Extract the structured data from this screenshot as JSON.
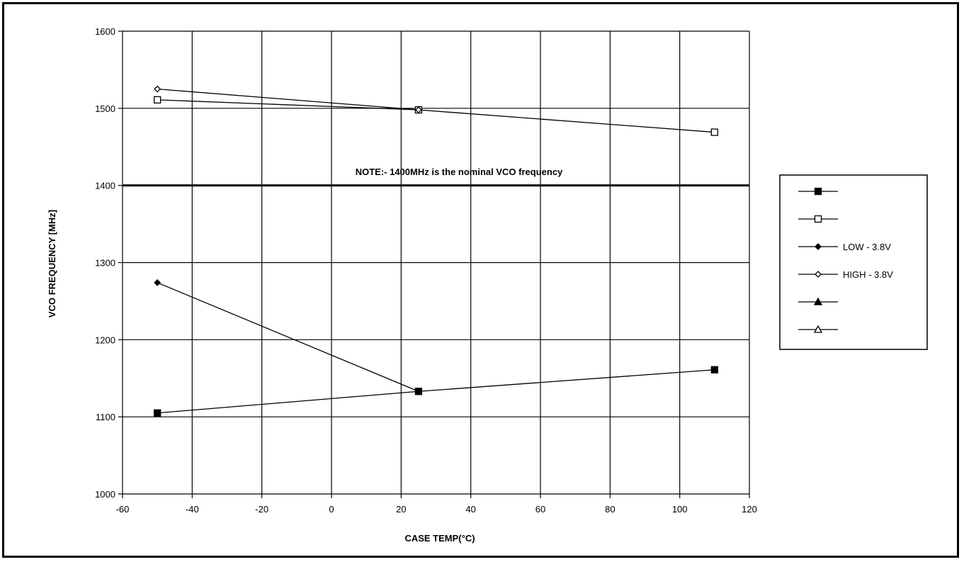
{
  "chart_data": {
    "type": "line",
    "xlabel": "CASE TEMP(°C)",
    "ylabel": "VCO FREQUENCY [MHz]",
    "xlim": [
      -60,
      120
    ],
    "ylim": [
      1000,
      1600
    ],
    "x_ticks": [
      -60,
      -40,
      -20,
      0,
      20,
      40,
      60,
      80,
      100,
      120
    ],
    "y_ticks": [
      1000,
      1100,
      1200,
      1300,
      1400,
      1500,
      1600
    ],
    "grid": true,
    "legend_position": "right",
    "annotation": "NOTE:- 1400MHz is the nominal VCO frequency",
    "nominal_line": 1400,
    "series": [
      {
        "name": "",
        "marker": "square-filled",
        "points": [
          {
            "x": -50,
            "y": 1105
          },
          {
            "x": 25,
            "y": 1133
          },
          {
            "x": 110,
            "y": 1161
          }
        ]
      },
      {
        "name": "",
        "marker": "square-open",
        "points": [
          {
            "x": -50,
            "y": 1511
          },
          {
            "x": 25,
            "y": 1498
          },
          {
            "x": 110,
            "y": 1469
          }
        ]
      },
      {
        "name": "LOW - 3.8V",
        "marker": "diamond-filled",
        "points": [
          {
            "x": -50,
            "y": 1274
          },
          {
            "x": 25,
            "y": 1133
          }
        ]
      },
      {
        "name": "HIGH - 3.8V",
        "marker": "diamond-open",
        "points": [
          {
            "x": -50,
            "y": 1525
          },
          {
            "x": 25,
            "y": 1498
          }
        ]
      },
      {
        "name": "",
        "marker": "triangle-filled",
        "points": []
      },
      {
        "name": "",
        "marker": "triangle-open",
        "points": []
      }
    ]
  }
}
